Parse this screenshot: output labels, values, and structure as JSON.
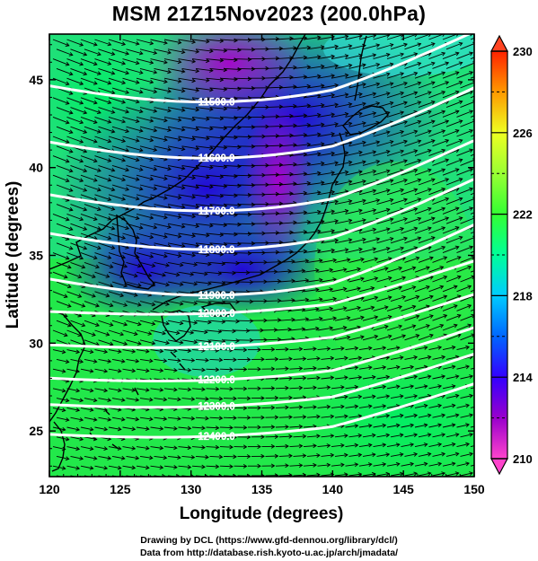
{
  "title": "MSM 21Z15Nov2023 (200.0hPa)",
  "x_axis": {
    "label": "Longitude (degrees)",
    "ticks": [
      "120",
      "125",
      "130",
      "135",
      "140",
      "145",
      "150"
    ],
    "range": [
      120,
      150
    ]
  },
  "y_axis": {
    "label": "Latitude  (degrees)",
    "ticks": [
      "25",
      "30",
      "35",
      "40",
      "45"
    ],
    "range": [
      22.4,
      47.6
    ]
  },
  "colorbar": {
    "ticks": [
      "230",
      "226",
      "222",
      "218",
      "214",
      "210"
    ],
    "range": [
      210,
      230
    ],
    "stops": [
      "#ff44cc",
      "#9900cc",
      "#3300ff",
      "#0066ff",
      "#00ccff",
      "#00ff99",
      "#33ff33",
      "#99ff33",
      "#eeff22",
      "#ff9900",
      "#ff2200"
    ]
  },
  "contours": [
    {
      "label": "11500.0",
      "lat_at_130": 45.8
    },
    {
      "label": "11600.0",
      "lat_at_130": 42.6
    },
    {
      "label": "11700.0",
      "lat_at_130": 39.6
    },
    {
      "label": "11800.0",
      "lat_at_130": 37.4
    },
    {
      "label": "11900.0",
      "lat_at_130": 34.8
    },
    {
      "label": "12000.0",
      "lat_at_130": 32.6
    },
    {
      "label": "12100.0",
      "lat_at_130": 30.7
    },
    {
      "label": "12200.0",
      "lat_at_130": 28.8
    },
    {
      "label": "12300.0",
      "lat_at_130": 27.3
    },
    {
      "label": "12400.0",
      "lat_at_130": 25.6
    }
  ],
  "credits": {
    "line1": "Drawing by DCL (https://www.gfd-dennou.org/library/dcl/)",
    "line2": "Data from http://database.rish.kyoto-u.ac.jp/arch/jmadata/"
  }
}
